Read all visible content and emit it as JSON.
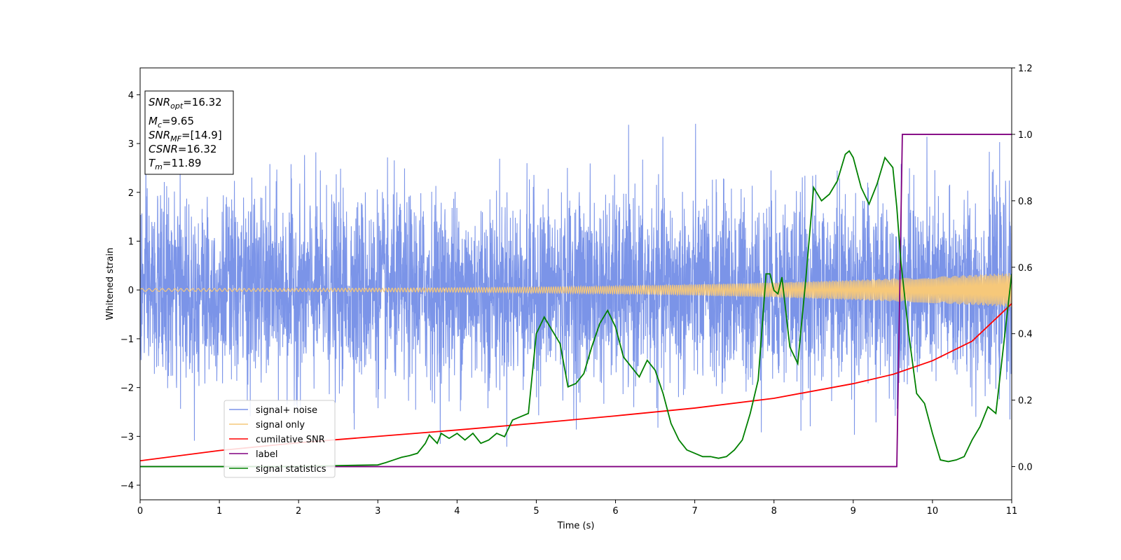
{
  "chart_data": {
    "type": "line",
    "xlabel": "Time (s)",
    "ylabel": "Whitened strain",
    "xlim": [
      0,
      11
    ],
    "ylim_left": [
      -4.3,
      4.55
    ],
    "ylim_right": [
      -0.1,
      1.2
    ],
    "x_ticks": [
      "0",
      "1",
      "2",
      "3",
      "4",
      "5",
      "6",
      "7",
      "8",
      "9",
      "10",
      "11"
    ],
    "y_ticks_left": [
      "4",
      "3",
      "2",
      "1",
      "0",
      "−1",
      "−2",
      "−3",
      "−4"
    ],
    "y_ticks_right": [
      "1.2",
      "1.0",
      "0.8",
      "0.6",
      "0.4",
      "0.2",
      "0.0"
    ],
    "legend": [
      {
        "label": "signal+ noise",
        "color": "#7b94e8"
      },
      {
        "label": "signal only",
        "color": "#f6c87a"
      },
      {
        "label": "cumilative SNR",
        "color": "#ff0000"
      },
      {
        "label": "label",
        "color": "#800080"
      },
      {
        "label": "signal statistics",
        "color": "#008000"
      }
    ],
    "legend_position": "lower-left",
    "info_box": {
      "snr_opt": {
        "base": "SNR",
        "sub": "opt",
        "value": "=16.32"
      },
      "mc": {
        "base": "M",
        "sub": "c",
        "value": "=9.65"
      },
      "snr_mf": {
        "base": "SNR",
        "sub": "MF",
        "value": "=[14.9]"
      },
      "csnr": {
        "base": "CSNR",
        "value": "=16.32"
      },
      "tm": {
        "base": "T",
        "sub": "m",
        "value": "=11.89"
      }
    },
    "series": [
      {
        "name": "signal+ noise",
        "axis": "left",
        "color": "#7b94e8",
        "description_range": [
          -2.5,
          2.5
        ],
        "envelope_std": 0.95
      },
      {
        "name": "signal only",
        "axis": "left",
        "color": "#f6c87a",
        "amplitude_start": 0.03,
        "amplitude_end": 0.35
      },
      {
        "name": "cumilative SNR",
        "axis": "left",
        "color": "#ff0000",
        "x": [
          0,
          1,
          2,
          3,
          4,
          5,
          6,
          7,
          8,
          9,
          9.5,
          10,
          10.5,
          11
        ],
        "y": [
          -3.5,
          -3.29,
          -3.13,
          -3.0,
          -2.87,
          -2.73,
          -2.58,
          -2.42,
          -2.22,
          -1.92,
          -1.73,
          -1.45,
          -1.05,
          -0.28
        ]
      },
      {
        "name": "label",
        "axis": "right",
        "color": "#800080",
        "x": [
          0,
          9.55,
          9.62,
          11
        ],
        "y": [
          0.0,
          0.0,
          1.0,
          1.0
        ]
      },
      {
        "name": "signal statistics",
        "axis": "right",
        "color": "#008000",
        "x": [
          0,
          0.5,
          1,
          1.5,
          2,
          2.5,
          3,
          3.1,
          3.2,
          3.3,
          3.4,
          3.5,
          3.6,
          3.65,
          3.75,
          3.8,
          3.9,
          4.0,
          4.1,
          4.2,
          4.3,
          4.4,
          4.5,
          4.6,
          4.7,
          4.8,
          4.9,
          5.0,
          5.1,
          5.2,
          5.3,
          5.4,
          5.5,
          5.6,
          5.7,
          5.8,
          5.9,
          6.0,
          6.1,
          6.2,
          6.3,
          6.4,
          6.5,
          6.6,
          6.7,
          6.8,
          6.9,
          7.0,
          7.1,
          7.2,
          7.3,
          7.4,
          7.5,
          7.6,
          7.7,
          7.8,
          7.9,
          7.95,
          8.0,
          8.05,
          8.1,
          8.2,
          8.3,
          8.4,
          8.5,
          8.6,
          8.7,
          8.8,
          8.9,
          8.95,
          9.0,
          9.1,
          9.2,
          9.3,
          9.4,
          9.5,
          9.55,
          9.6,
          9.7,
          9.8,
          9.9,
          10.0,
          10.1,
          10.2,
          10.3,
          10.4,
          10.5,
          10.6,
          10.7,
          10.8,
          10.9,
          11.0
        ],
        "y": [
          0.0,
          0.0,
          0.0,
          0.0,
          0.0,
          0.003,
          0.005,
          0.012,
          0.02,
          0.028,
          0.033,
          0.04,
          0.07,
          0.095,
          0.07,
          0.1,
          0.085,
          0.1,
          0.08,
          0.1,
          0.07,
          0.08,
          0.1,
          0.09,
          0.14,
          0.15,
          0.16,
          0.4,
          0.45,
          0.41,
          0.37,
          0.24,
          0.25,
          0.28,
          0.36,
          0.43,
          0.47,
          0.42,
          0.33,
          0.3,
          0.27,
          0.32,
          0.29,
          0.22,
          0.13,
          0.08,
          0.05,
          0.04,
          0.03,
          0.03,
          0.025,
          0.03,
          0.05,
          0.08,
          0.16,
          0.26,
          0.58,
          0.58,
          0.53,
          0.52,
          0.57,
          0.36,
          0.31,
          0.56,
          0.84,
          0.8,
          0.82,
          0.86,
          0.94,
          0.95,
          0.93,
          0.84,
          0.79,
          0.85,
          0.93,
          0.9,
          0.78,
          0.62,
          0.4,
          0.22,
          0.19,
          0.1,
          0.02,
          0.015,
          0.02,
          0.03,
          0.08,
          0.12,
          0.18,
          0.16,
          0.37,
          0.58
        ]
      }
    ]
  }
}
